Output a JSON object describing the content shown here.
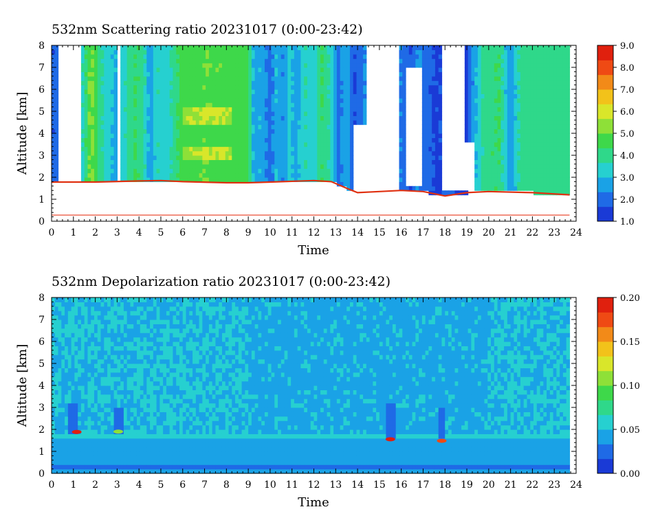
{
  "colors": {
    "scale": [
      "#1a3ad6",
      "#1f6ae6",
      "#1aa2e6",
      "#26d0d0",
      "#2fd88a",
      "#3ed84a",
      "#8ee038",
      "#d9e62a",
      "#f2c21a",
      "#f28a18",
      "#ef4a14",
      "#e0200e"
    ],
    "baseline_line": "#e8381c",
    "ground_band": "#e03010"
  },
  "chart_data": [
    {
      "type": "heatmap",
      "title": "532nm Scattering ratio  20231017 (0:00-23:42)",
      "xlabel": "Time",
      "ylabel": "Altitude [km]",
      "xlim": [
        0,
        24
      ],
      "ylim": [
        0,
        8
      ],
      "x_ticks": [
        "0",
        "1",
        "2",
        "3",
        "4",
        "5",
        "6",
        "7",
        "8",
        "9",
        "10",
        "11",
        "12",
        "13",
        "14",
        "15",
        "16",
        "17",
        "18",
        "19",
        "20",
        "21",
        "22",
        "23",
        "24"
      ],
      "y_ticks": [
        "0",
        "1",
        "2",
        "3",
        "4",
        "5",
        "6",
        "7",
        "8"
      ],
      "colorbar": {
        "min": 1.0,
        "max": 9.0,
        "labels": [
          "1.0",
          "2.0",
          "3.0",
          "4.0",
          "5.0",
          "6.0",
          "7.0",
          "8.0",
          "9.0"
        ]
      },
      "data_end_hour": 23.7,
      "cloud_base_km": [
        [
          0,
          1.78
        ],
        [
          2,
          1.78
        ],
        [
          4,
          1.83
        ],
        [
          5,
          1.85
        ],
        [
          6,
          1.8
        ],
        [
          8,
          1.75
        ],
        [
          9,
          1.75
        ],
        [
          10,
          1.78
        ],
        [
          12,
          1.85
        ],
        [
          12.8,
          1.8
        ],
        [
          13.5,
          1.5
        ],
        [
          14,
          1.3
        ],
        [
          15,
          1.35
        ],
        [
          16,
          1.4
        ],
        [
          17,
          1.35
        ],
        [
          18,
          1.15
        ],
        [
          19,
          1.3
        ],
        [
          20,
          1.35
        ],
        [
          22,
          1.3
        ],
        [
          23.7,
          1.2
        ]
      ],
      "reference_line_km": 0.28,
      "time_profiles": [
        [
          0,
          1.6
        ],
        [
          0.2,
          2.0
        ],
        [
          0.5,
          2.6
        ],
        [
          1.0,
          2.1
        ],
        [
          1.3,
          3.0
        ],
        [
          1.8,
          5.3
        ],
        [
          2.2,
          4.0
        ],
        [
          2.6,
          3.2
        ],
        [
          3.0,
          2.8
        ],
        [
          3.4,
          3.6
        ],
        [
          3.8,
          4.4
        ],
        [
          4.2,
          3.9
        ],
        [
          4.5,
          2.6
        ],
        [
          4.9,
          3.6
        ],
        [
          5.3,
          3.1
        ],
        [
          5.6,
          4.1
        ],
        [
          6.0,
          4.6
        ],
        [
          7.0,
          4.9
        ],
        [
          8.0,
          4.8
        ],
        [
          9.0,
          4.6
        ],
        [
          9.3,
          2.4
        ],
        [
          9.6,
          3.0
        ],
        [
          10.0,
          1.9
        ],
        [
          10.3,
          3.0
        ],
        [
          10.6,
          2.4
        ],
        [
          10.9,
          3.3
        ],
        [
          11.2,
          2.6
        ],
        [
          11.6,
          3.6
        ],
        [
          12.0,
          3.2
        ],
        [
          12.4,
          4.4
        ],
        [
          12.8,
          3.5
        ],
        [
          13.1,
          2.1
        ],
        [
          13.5,
          2.8
        ],
        [
          13.9,
          1.6
        ],
        [
          14.3,
          2.4
        ],
        [
          14.7,
          1.7
        ],
        [
          15.1,
          2.3
        ],
        [
          15.5,
          1.9
        ],
        [
          16.0,
          2.3
        ],
        [
          16.4,
          1.6
        ],
        [
          16.8,
          2.5
        ],
        [
          17.2,
          1.9
        ],
        [
          17.6,
          1.5
        ],
        [
          18.0,
          1.8
        ],
        [
          18.5,
          1.6
        ],
        [
          19.0,
          1.5
        ],
        [
          19.4,
          2.9
        ],
        [
          19.8,
          4.0
        ],
        [
          20.5,
          4.3
        ],
        [
          21.0,
          2.2
        ],
        [
          21.4,
          3.8
        ],
        [
          22.0,
          4.1
        ],
        [
          23.0,
          3.9
        ],
        [
          23.7,
          4.0
        ]
      ],
      "gaps": [
        {
          "t0": 0.25,
          "t1": 1.3,
          "base": 1.82,
          "top": 8
        },
        {
          "t0": 2.95,
          "t1": 3.15,
          "base": 1.86,
          "top": 8
        },
        {
          "t0": 13.75,
          "t1": 14.35,
          "base": 1.38,
          "top": 4.3
        },
        {
          "t0": 14.35,
          "t1": 15.85,
          "base": 1.5,
          "top": 8
        },
        {
          "t0": 16.25,
          "t1": 16.95,
          "base": 1.55,
          "top": 7.1
        },
        {
          "t0": 17.9,
          "t1": 18.95,
          "base": 1.4,
          "top": 8
        },
        {
          "t0": 18.95,
          "t1": 19.4,
          "base": 1.5,
          "top": 3.6
        }
      ]
    },
    {
      "type": "heatmap",
      "title": "532nm Depolarization ratio  20231017 (0:00-23:42)",
      "xlabel": "Time",
      "ylabel": "Altitude [km]",
      "xlim": [
        0,
        24
      ],
      "ylim": [
        0,
        8
      ],
      "x_ticks": [
        "0",
        "1",
        "2",
        "3",
        "4",
        "5",
        "6",
        "7",
        "8",
        "9",
        "10",
        "11",
        "12",
        "13",
        "14",
        "15",
        "16",
        "17",
        "18",
        "19",
        "20",
        "21",
        "22",
        "23",
        "24"
      ],
      "y_ticks": [
        "0",
        "1",
        "2",
        "3",
        "4",
        "5",
        "6",
        "7",
        "8"
      ],
      "colorbar": {
        "min": 0.0,
        "max": 0.2,
        "labels": [
          "0.00",
          "0.05",
          "0.10",
          "0.15",
          "0.20"
        ]
      },
      "data_end_hour": 23.7,
      "background_value": 0.05,
      "low_layers": [
        {
          "z0": 0.0,
          "z1": 0.2,
          "v": 0.045
        },
        {
          "z0": 0.2,
          "z1": 0.4,
          "v": 0.03
        },
        {
          "z0": 0.4,
          "z1": 0.95,
          "v": 0.035
        },
        {
          "z0": 0.95,
          "z1": 1.55,
          "v": 0.042
        },
        {
          "z0": 1.55,
          "z1": 1.8,
          "v": 0.05
        }
      ],
      "columns": [
        {
          "t": 1.0,
          "z0": 1.9,
          "z1": 3.2,
          "v": 0.02
        },
        {
          "t": 3.05,
          "z0": 1.9,
          "z1": 3.0,
          "v": 0.025
        },
        {
          "t": 15.5,
          "z0": 1.7,
          "z1": 3.2,
          "v": 0.02
        },
        {
          "t": 17.85,
          "z0": 1.6,
          "z1": 3.0,
          "v": 0.02
        }
      ],
      "hot_spots": [
        {
          "t": 1.15,
          "z": 1.88,
          "v": 0.19
        },
        {
          "t": 3.05,
          "z": 1.9,
          "v": 0.1
        },
        {
          "t": 15.5,
          "z": 1.55,
          "v": 0.19
        },
        {
          "t": 17.85,
          "z": 1.48,
          "v": 0.17
        }
      ]
    }
  ]
}
